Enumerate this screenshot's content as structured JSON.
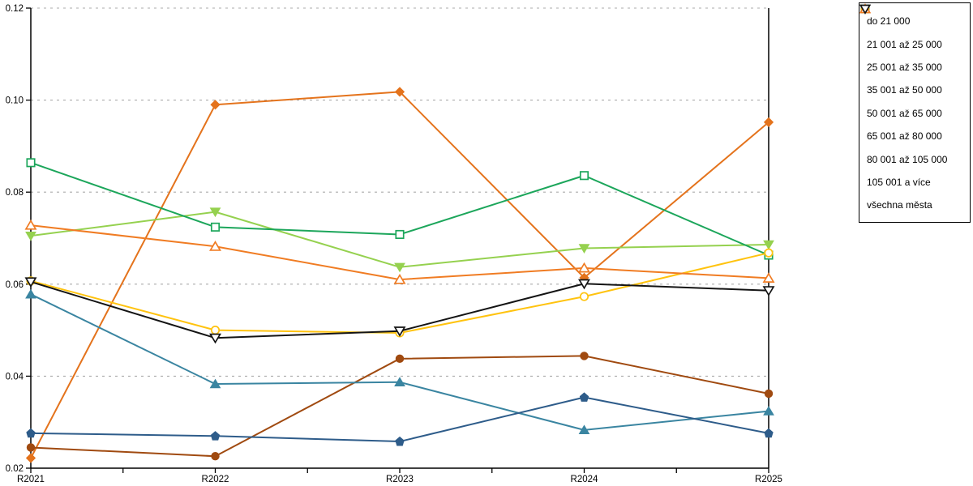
{
  "chart_data": {
    "type": "line",
    "title": "",
    "xlabel": "",
    "ylabel": "",
    "x_categories": [
      "R2021",
      "R2022",
      "R2023",
      "R2024",
      "R2025"
    ],
    "ylim": [
      0.02,
      0.12
    ],
    "ytick_labels": [
      "0.02",
      "0.04",
      "0.06",
      "0.08",
      "0.10",
      "0.12"
    ],
    "grid": "horizontal-dotted",
    "legend_position": "outside-top-right",
    "series": [
      {
        "name": "do 21 000",
        "marker": "diamond",
        "fill": "filled",
        "color": "#E4731C",
        "values": [
          0.0222,
          0.099,
          0.1018,
          0.0614,
          0.0952
        ]
      },
      {
        "name": "21 001 až 25 000",
        "marker": "circle",
        "fill": "filled",
        "color": "#A04A10",
        "values": [
          0.0245,
          0.0226,
          0.0438,
          0.0444,
          0.0362
        ]
      },
      {
        "name": "25 001 až 35 000",
        "marker": "triangle-up",
        "fill": "filled",
        "color": "#3A85A1",
        "values": [
          0.0578,
          0.0383,
          0.0387,
          0.0283,
          0.0324
        ]
      },
      {
        "name": "35 001 až 50 000",
        "marker": "pentagon",
        "fill": "filled",
        "color": "#2E5C8A",
        "values": [
          0.0276,
          0.027,
          0.0258,
          0.0354,
          0.0276
        ]
      },
      {
        "name": "50 001 až 65 000",
        "marker": "triangle-down",
        "fill": "filled",
        "color": "#95D14F",
        "values": [
          0.0705,
          0.0757,
          0.0637,
          0.0678,
          0.0686
        ]
      },
      {
        "name": "65 001 až 80 000",
        "marker": "square",
        "fill": "open",
        "color": "#1CA65B",
        "values": [
          0.0864,
          0.0724,
          0.0708,
          0.0836,
          0.0663
        ]
      },
      {
        "name": "80 001 až 105 000",
        "marker": "circle",
        "fill": "open",
        "color": "#FFC30F",
        "values": [
          0.0607,
          0.05,
          0.0494,
          0.0573,
          0.0668
        ]
      },
      {
        "name": "105 001 a více",
        "marker": "triangle-up",
        "fill": "open",
        "color": "#F07C23",
        "values": [
          0.0728,
          0.0682,
          0.061,
          0.0635,
          0.0613
        ]
      },
      {
        "name": "všechna města",
        "marker": "triangle-down",
        "fill": "open",
        "color": "#141414",
        "values": [
          0.0605,
          0.0483,
          0.0498,
          0.0601,
          0.0586
        ]
      }
    ]
  }
}
